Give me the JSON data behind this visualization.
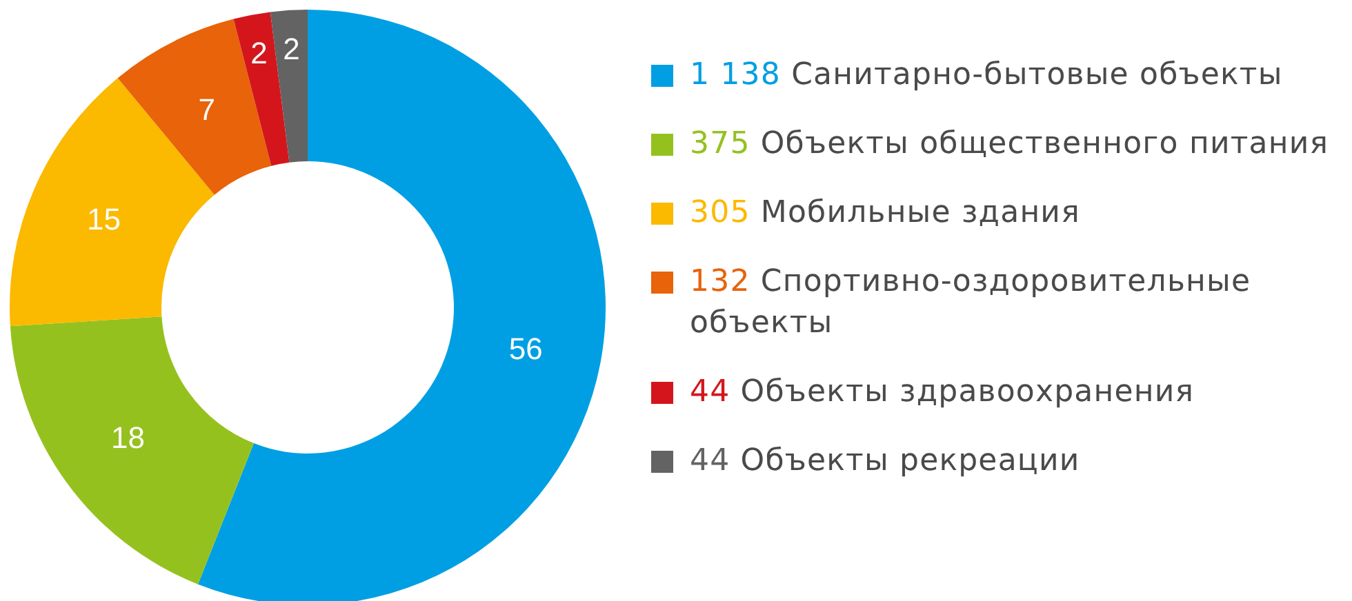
{
  "chart_data": {
    "type": "donut",
    "categories": [
      "1 138 Санитарно-бытовые объекты",
      "375 Объекты общественного питания",
      "305 Мобильные здания",
      "132 Спортивно-оздоровительные объекты",
      "44 Объекты здравоохранения",
      "44 Объекты рекреации"
    ],
    "values": [
      56,
      18,
      15,
      7,
      2,
      2
    ],
    "data_labels": true,
    "colors": [
      "#009fe3",
      "#95c11f",
      "#fbb900",
      "#e8630a",
      "#d4161c",
      "#646363"
    ],
    "legend": "right"
  }
}
